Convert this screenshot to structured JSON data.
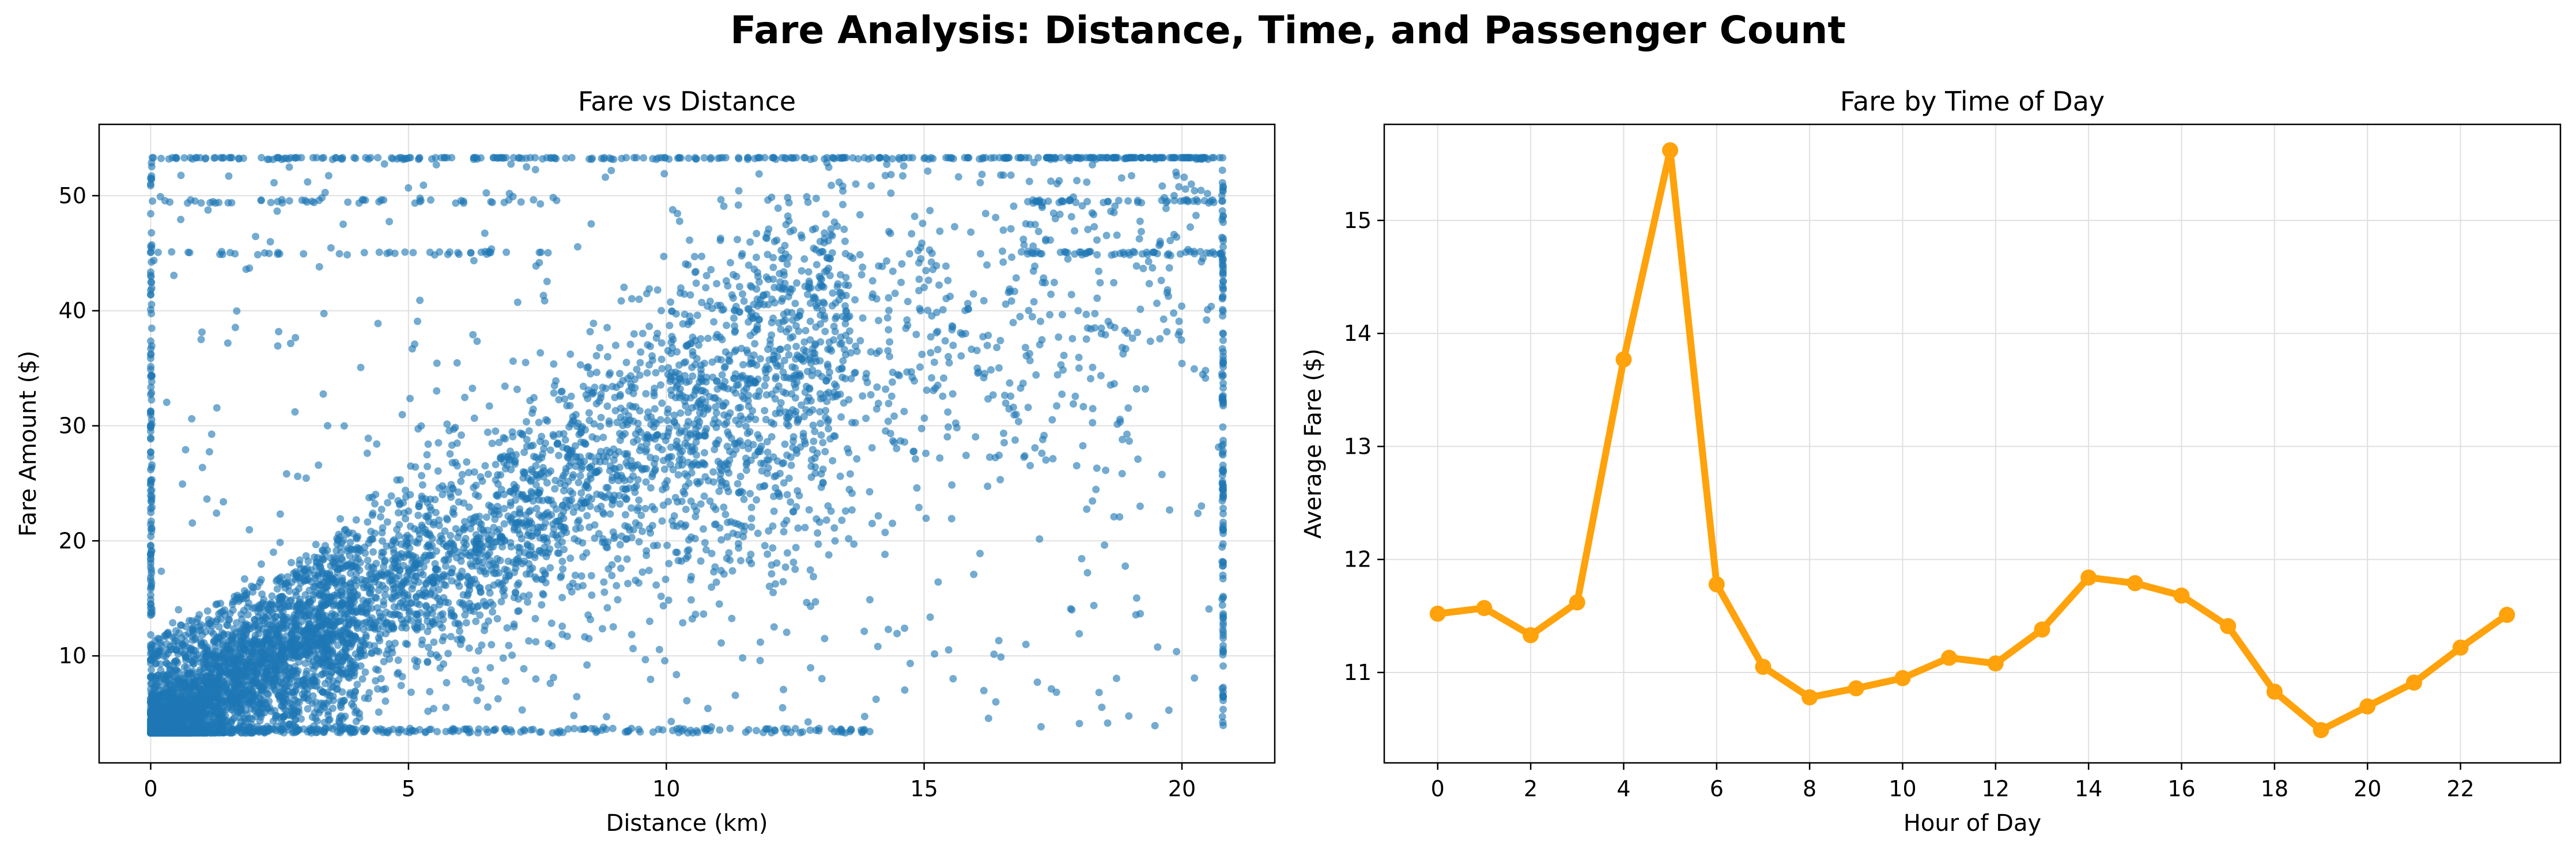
{
  "figure": {
    "title": "Fare Analysis: Distance, Time, and Passenger Count"
  },
  "colors": {
    "scatter": "#1f77b4",
    "line": "#ffa20b",
    "grid": "#e0e0e0",
    "axes": "#000000"
  },
  "chart_data": [
    {
      "type": "scatter",
      "title": "Fare vs Distance",
      "xlabel": "Distance (km)",
      "ylabel": "Fare Amount ($)",
      "xlim": [
        -1.0,
        21.8
      ],
      "ylim": [
        0.7,
        56.2
      ],
      "xticks": [
        0,
        5,
        10,
        15,
        20
      ],
      "yticks": [
        10,
        20,
        30,
        40,
        50
      ],
      "grid": true,
      "fare_floor": 3.3,
      "fare_cap": 53.3,
      "distance_cap": 20.8,
      "trend": {
        "slope": 2.6,
        "intercept": 3.3
      },
      "cap_distance_cluster": [
        0.0,
        20.8
      ],
      "horizontal_fare_bands": [
        45.0,
        49.5,
        53.3
      ]
    },
    {
      "type": "line",
      "title": "Fare by Time of Day",
      "xlabel": "Hour of Day",
      "ylabel": "Average Fare ($)",
      "xlim": [
        -1.15,
        24.15
      ],
      "ylim": [
        10.2,
        15.85
      ],
      "xticks": [
        0,
        2,
        4,
        6,
        8,
        10,
        12,
        14,
        16,
        18,
        20,
        22
      ],
      "yticks": [
        11,
        12,
        13,
        14,
        15
      ],
      "grid": true,
      "x": [
        0,
        1,
        2,
        3,
        4,
        5,
        6,
        7,
        8,
        9,
        10,
        11,
        12,
        13,
        14,
        15,
        16,
        17,
        18,
        19,
        20,
        21,
        22,
        23
      ],
      "values": [
        11.52,
        11.57,
        11.33,
        11.62,
        13.77,
        15.62,
        11.78,
        11.05,
        10.78,
        10.86,
        10.95,
        11.13,
        11.08,
        11.38,
        11.84,
        11.79,
        11.68,
        11.41,
        10.83,
        10.49,
        10.7,
        10.91,
        11.22,
        11.51
      ]
    }
  ]
}
